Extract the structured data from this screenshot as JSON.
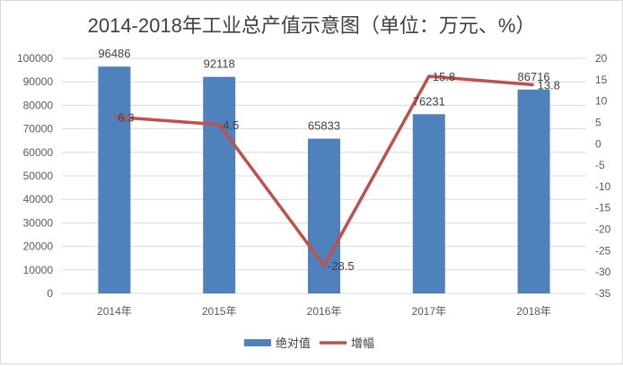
{
  "chart_data": {
    "type": "bar+line",
    "title": "2014-2018年工业总产值示意图（单位：万元、%）",
    "categories": [
      "2014年",
      "2015年",
      "2016年",
      "2017年",
      "2018年"
    ],
    "series": [
      {
        "name": "绝对值",
        "type": "bar",
        "axis": "left",
        "color": "#4f81bd",
        "values": [
          96486,
          92118,
          65833,
          76231,
          86716
        ]
      },
      {
        "name": "增幅",
        "type": "line",
        "axis": "right",
        "color": "#c0504d",
        "values": [
          6.3,
          4.5,
          -28.5,
          15.8,
          13.8
        ]
      }
    ],
    "left_axis": {
      "min": 0,
      "max": 100000,
      "step": 10000,
      "ticks": [
        "0",
        "10000",
        "20000",
        "30000",
        "40000",
        "50000",
        "60000",
        "70000",
        "80000",
        "90000",
        "100000"
      ]
    },
    "right_axis": {
      "min": -35,
      "max": 20,
      "step": 5,
      "ticks": [
        "-35",
        "-30",
        "-25",
        "-20",
        "-15",
        "-10",
        "-5",
        "0",
        "5",
        "10",
        "15",
        "20"
      ]
    },
    "grid": true,
    "legend": "bottom"
  }
}
